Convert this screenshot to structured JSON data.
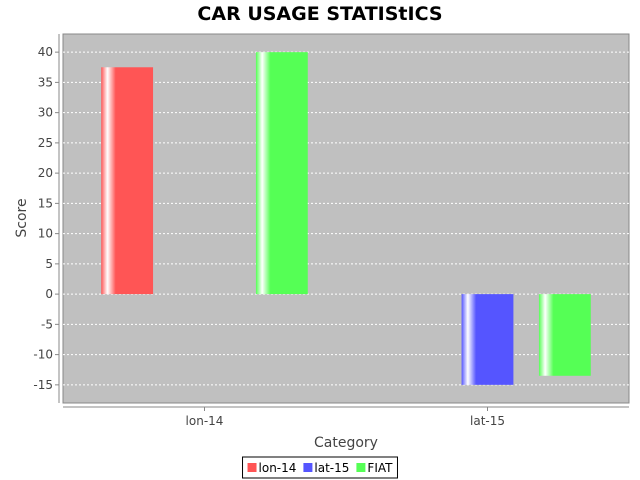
{
  "chart_data": {
    "type": "bar",
    "title": "CAR USAGE STATIStICS",
    "xlabel": "Category",
    "ylabel": "Score",
    "categories": [
      "lon-14",
      "lat-15"
    ],
    "series": [
      {
        "name": "lon-14",
        "color": "#ff5555",
        "values": [
          37.5,
          null
        ]
      },
      {
        "name": "lat-15",
        "color": "#5555ff",
        "values": [
          null,
          -15
        ]
      },
      {
        "name": "FIAT",
        "color": "#55ff55",
        "values": [
          40,
          -13.5
        ]
      }
    ],
    "ylim": [
      -18,
      43
    ],
    "yticks": [
      -15,
      -10,
      -5,
      0,
      5,
      10,
      15,
      20,
      25,
      30,
      35,
      40
    ],
    "grid": true,
    "legend_position": "bottom"
  }
}
